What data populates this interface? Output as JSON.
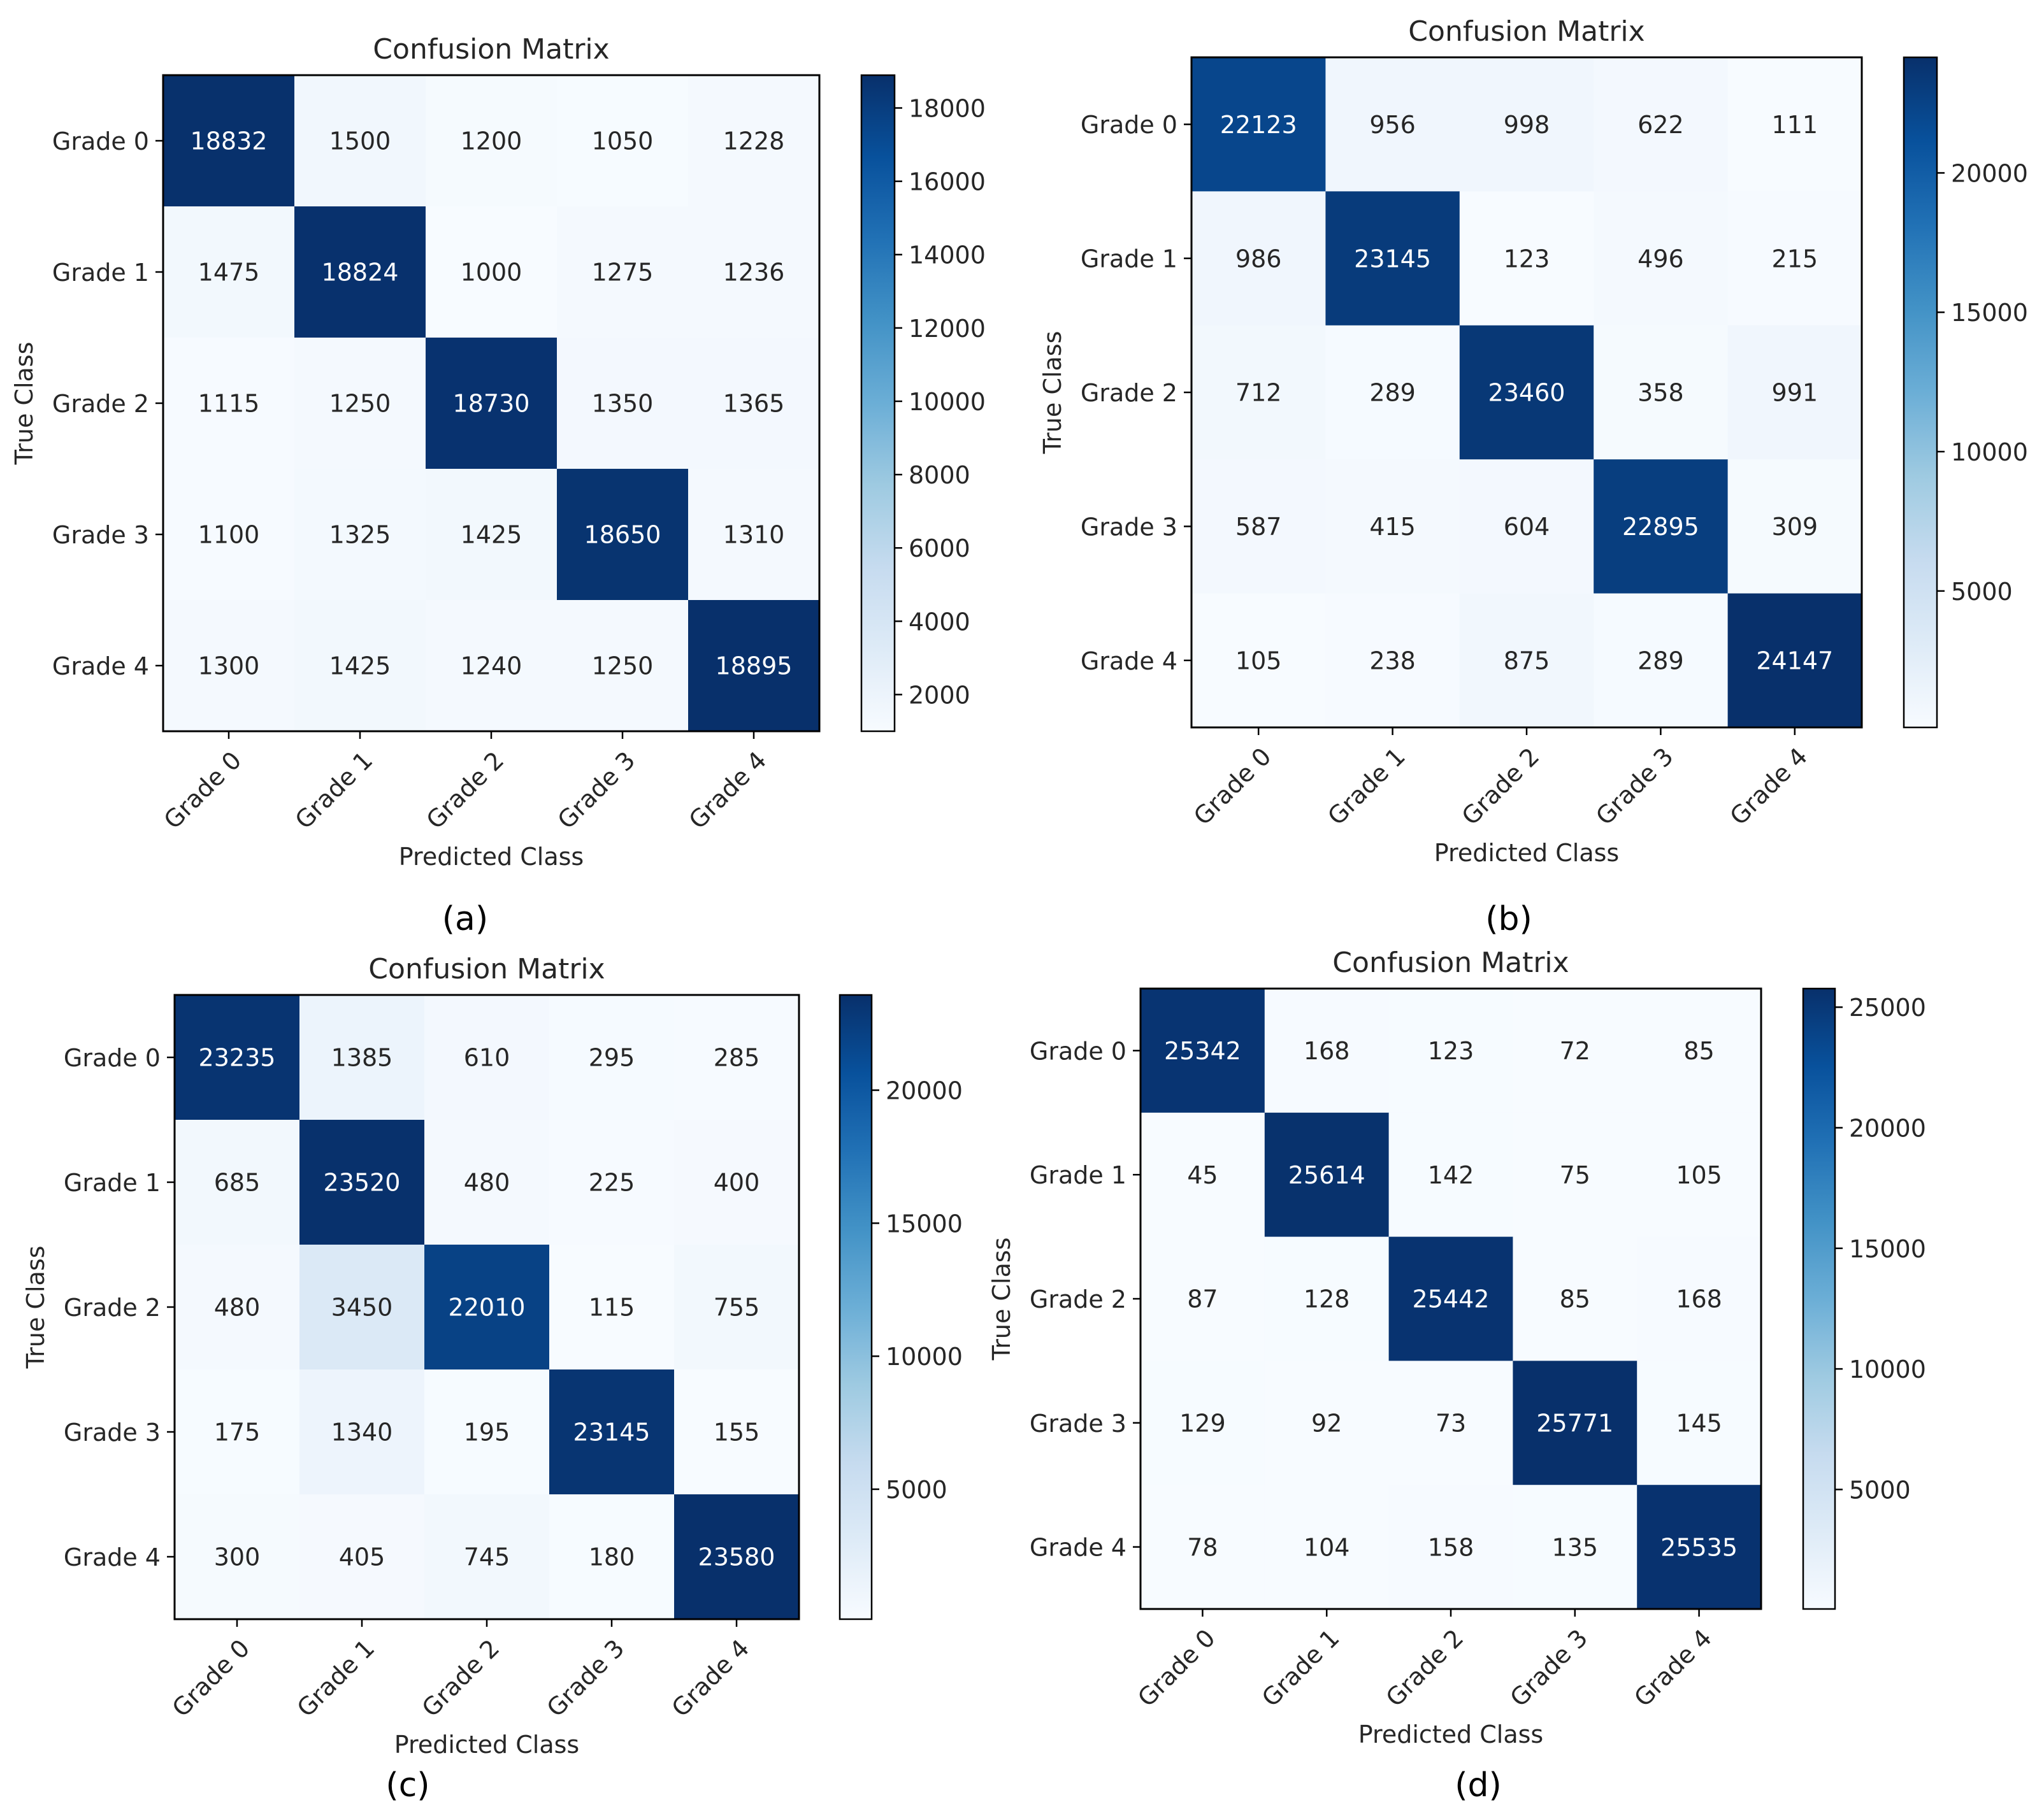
{
  "figure": {
    "captions": [
      "(a)",
      "(b)",
      "(c)",
      "(d)"
    ]
  },
  "colors": {
    "cmap_low": "#f7fbff",
    "cmap_high": "#08306b",
    "text_dark": "#262626",
    "text_light": "#ffffff",
    "frame": "#000000"
  },
  "chart_data": [
    {
      "type": "heatmap",
      "title": "Confusion Matrix",
      "xlabel": "Predicted Class",
      "ylabel": "True Class",
      "categories": [
        "Grade 0",
        "Grade 1",
        "Grade 2",
        "Grade 3",
        "Grade 4"
      ],
      "matrix": [
        [
          18832,
          1500,
          1200,
          1050,
          1228
        ],
        [
          1475,
          18824,
          1000,
          1275,
          1236
        ],
        [
          1115,
          1250,
          18730,
          1350,
          1365
        ],
        [
          1100,
          1325,
          1425,
          18650,
          1310
        ],
        [
          1300,
          1425,
          1240,
          1250,
          18895
        ]
      ],
      "colorbar": {
        "range": [
          1000,
          18895
        ],
        "ticks": [
          2000,
          4000,
          6000,
          8000,
          10000,
          12000,
          14000,
          16000,
          18000
        ]
      }
    },
    {
      "type": "heatmap",
      "title": "Confusion Matrix",
      "xlabel": "Predicted Class",
      "ylabel": "True Class",
      "categories": [
        "Grade 0",
        "Grade 1",
        "Grade 2",
        "Grade 3",
        "Grade 4"
      ],
      "matrix": [
        [
          22123,
          956,
          998,
          622,
          111
        ],
        [
          986,
          23145,
          123,
          496,
          215
        ],
        [
          712,
          289,
          23460,
          358,
          991
        ],
        [
          587,
          415,
          604,
          22895,
          309
        ],
        [
          105,
          238,
          875,
          289,
          24147
        ]
      ],
      "colorbar": {
        "range": [
          105,
          24147
        ],
        "ticks": [
          5000,
          10000,
          15000,
          20000
        ]
      }
    },
    {
      "type": "heatmap",
      "title": "Confusion Matrix",
      "xlabel": "Predicted Class",
      "ylabel": "True Class",
      "categories": [
        "Grade 0",
        "Grade 1",
        "Grade 2",
        "Grade 3",
        "Grade 4"
      ],
      "matrix": [
        [
          23235,
          1385,
          610,
          295,
          285
        ],
        [
          685,
          23520,
          480,
          225,
          400
        ],
        [
          480,
          3450,
          22010,
          115,
          755
        ],
        [
          175,
          1340,
          195,
          23145,
          155
        ],
        [
          300,
          405,
          745,
          180,
          23580
        ]
      ],
      "colorbar": {
        "range": [
          115,
          23580
        ],
        "ticks": [
          5000,
          10000,
          15000,
          20000
        ]
      }
    },
    {
      "type": "heatmap",
      "title": "Confusion Matrix",
      "xlabel": "Predicted Class",
      "ylabel": "True Class",
      "categories": [
        "Grade 0",
        "Grade 1",
        "Grade 2",
        "Grade 3",
        "Grade 4"
      ],
      "matrix": [
        [
          25342,
          168,
          123,
          72,
          85
        ],
        [
          45,
          25614,
          142,
          75,
          105
        ],
        [
          87,
          128,
          25442,
          85,
          168
        ],
        [
          129,
          92,
          73,
          25771,
          145
        ],
        [
          78,
          104,
          158,
          135,
          25535
        ]
      ],
      "colorbar": {
        "range": [
          45,
          25771
        ],
        "ticks": [
          5000,
          10000,
          15000,
          20000,
          25000
        ]
      }
    }
  ]
}
